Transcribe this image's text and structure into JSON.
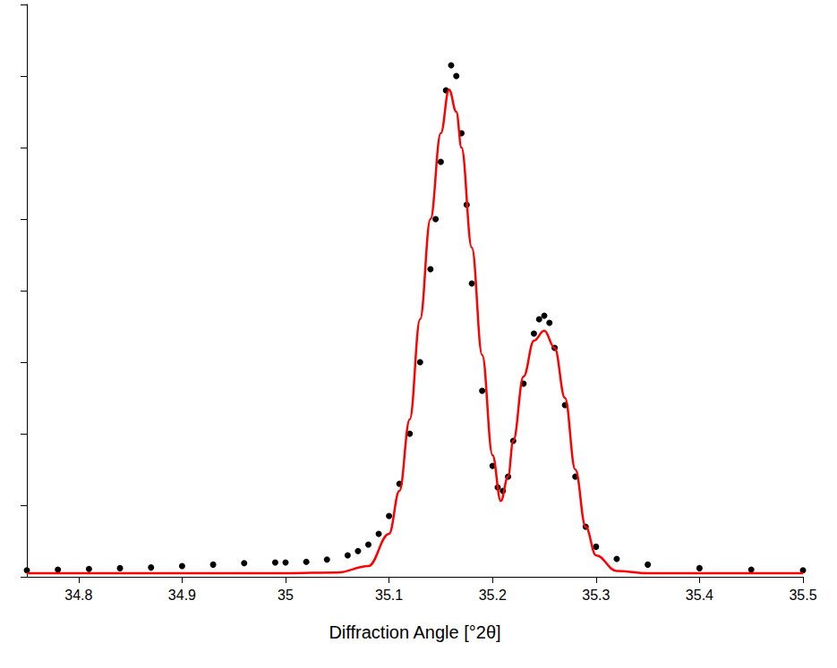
{
  "chart_data": {
    "type": "scatter",
    "x_label": "Diffraction Angle [°2θ]",
    "xlim": [
      34.75,
      35.5
    ],
    "xticks": [
      34.8,
      34.9,
      35.0,
      35.1,
      35.2,
      35.3,
      35.4,
      35.5
    ],
    "ylim": [
      0,
      8
    ],
    "yticks": [
      0,
      1,
      2,
      3,
      4,
      5,
      6,
      7,
      8
    ],
    "tick_labels": "x",
    "grid": false,
    "series": [
      {
        "type": "scatter",
        "color": "#000000",
        "marker": "circle",
        "x": [
          34.75,
          34.78,
          34.81,
          34.84,
          34.87,
          34.9,
          34.93,
          34.96,
          34.99,
          35.0,
          35.02,
          35.04,
          35.06,
          35.07,
          35.08,
          35.09,
          35.1,
          35.11,
          35.12,
          35.13,
          35.14,
          35.145,
          35.15,
          35.155,
          35.16,
          35.165,
          35.17,
          35.175,
          35.18,
          35.19,
          35.2,
          35.205,
          35.21,
          35.215,
          35.22,
          35.23,
          35.24,
          35.245,
          35.25,
          35.255,
          35.26,
          35.27,
          35.28,
          35.29,
          35.3,
          35.32,
          35.35,
          35.4,
          35.45,
          35.5
        ],
        "values": [
          0.09,
          0.1,
          0.11,
          0.12,
          0.13,
          0.15,
          0.17,
          0.19,
          0.2,
          0.2,
          0.21,
          0.24,
          0.3,
          0.36,
          0.45,
          0.6,
          0.85,
          1.3,
          2.0,
          3.0,
          4.3,
          5.0,
          5.8,
          6.8,
          7.15,
          7.0,
          6.2,
          5.2,
          4.1,
          2.6,
          1.55,
          1.25,
          1.2,
          1.4,
          1.9,
          2.7,
          3.4,
          3.6,
          3.65,
          3.55,
          3.2,
          2.4,
          1.4,
          0.7,
          0.42,
          0.25,
          0.17,
          0.12,
          0.1,
          0.09
        ]
      },
      {
        "type": "line",
        "color": "#ff0000",
        "line_style": "solid",
        "x": [
          34.75,
          35.0,
          35.05,
          35.08,
          35.1,
          35.11,
          35.12,
          35.13,
          35.14,
          35.15,
          35.158,
          35.165,
          35.17,
          35.18,
          35.19,
          35.2,
          35.208,
          35.215,
          35.22,
          35.23,
          35.24,
          35.25,
          35.26,
          35.27,
          35.28,
          35.29,
          35.3,
          35.32,
          35.35,
          35.5
        ],
        "values": [
          0.05,
          0.05,
          0.06,
          0.15,
          0.6,
          1.2,
          2.2,
          3.6,
          5.0,
          6.2,
          6.81,
          6.5,
          6.0,
          4.6,
          3.1,
          1.7,
          1.06,
          1.4,
          1.9,
          2.8,
          3.3,
          3.44,
          3.2,
          2.5,
          1.5,
          0.7,
          0.3,
          0.08,
          0.05,
          0.05
        ]
      }
    ]
  }
}
